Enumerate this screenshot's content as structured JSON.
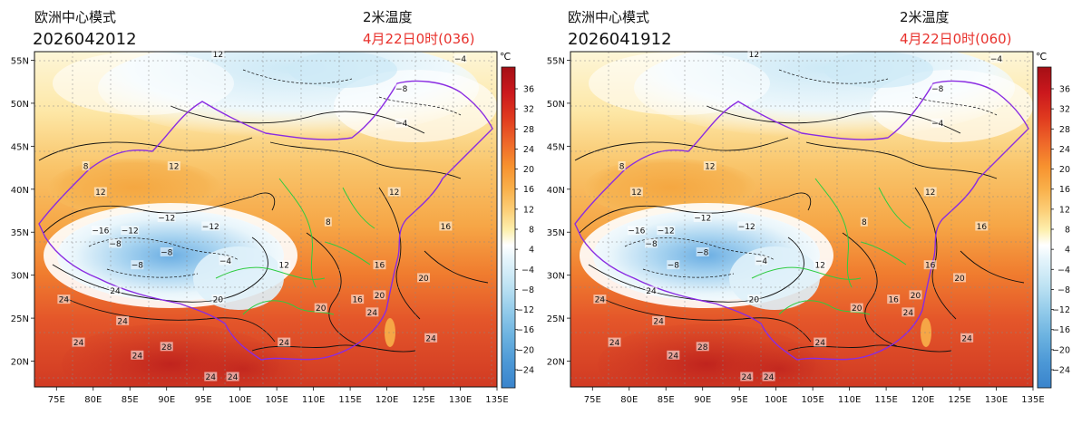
{
  "colors": {
    "title_black": "#111111",
    "title_red": "#e8312c",
    "china_border": "#8a2be2",
    "province_border": "#2ecc40",
    "contour": "#111111",
    "grid": "#888888"
  },
  "icons": {
    "colorbar_unit": "degree-celsius-glyph"
  },
  "panels": [
    {
      "model_name": "欧洲中心模式",
      "run_time": "2026042012",
      "variable": "2米温度",
      "valid_time": "4月22日0时(036)"
    },
    {
      "model_name": "欧洲中心模式",
      "run_time": "2026041912",
      "variable": "2米温度",
      "valid_time": "4月22日0时(060)"
    }
  ],
  "axes": {
    "lon_labels": [
      "75E",
      "80E",
      "85E",
      "90E",
      "95E",
      "100E",
      "105E",
      "110E",
      "115E",
      "120E",
      "125E",
      "130E",
      "135E"
    ],
    "lat_labels": [
      "20N",
      "25N",
      "30N",
      "35N",
      "40N",
      "45N",
      "50N",
      "55N"
    ]
  },
  "colorbar": {
    "unit": "℃",
    "ticks": [
      "36",
      "32",
      "28",
      "24",
      "20",
      "16",
      "12",
      "8",
      "4",
      "−4",
      "−8",
      "−12",
      "−16",
      "−20",
      "−24"
    ]
  },
  "contour_labels": {
    "panel0": [
      {
        "text": "24",
        "lon": 78,
        "lat": 22.0
      },
      {
        "text": "24",
        "lon": 84,
        "lat": 24.5
      },
      {
        "text": "28",
        "lon": 90,
        "lat": 21.5
      },
      {
        "text": "24",
        "lon": 86,
        "lat": 20.5
      },
      {
        "text": "24",
        "lon": 76,
        "lat": 27.0
      },
      {
        "text": "24",
        "lon": 83,
        "lat": 28.0
      },
      {
        "text": "24",
        "lon": 96,
        "lat": 18.0
      },
      {
        "text": "24",
        "lon": 99,
        "lat": 18.0
      },
      {
        "text": "24",
        "lon": 106,
        "lat": 22.0
      },
      {
        "text": "24",
        "lon": 118,
        "lat": 25.5
      },
      {
        "text": "24",
        "lon": 126,
        "lat": 22.5
      },
      {
        "text": "20",
        "lon": 97,
        "lat": 27.0
      },
      {
        "text": "20",
        "lon": 119,
        "lat": 27.5
      },
      {
        "text": "20",
        "lon": 111,
        "lat": 26.0
      },
      {
        "text": "20",
        "lon": 125,
        "lat": 29.5
      },
      {
        "text": "16",
        "lon": 116,
        "lat": 27.0
      },
      {
        "text": "16",
        "lon": 119,
        "lat": 31.0
      },
      {
        "text": "16",
        "lon": 128,
        "lat": 35.5
      },
      {
        "text": "12",
        "lon": 106,
        "lat": 31.0
      },
      {
        "text": "12",
        "lon": 121,
        "lat": 39.5
      },
      {
        "text": "12",
        "lon": 81,
        "lat": 39.5
      },
      {
        "text": "12",
        "lon": 91,
        "lat": 42.5
      },
      {
        "text": "8",
        "lon": 79,
        "lat": 42.5
      },
      {
        "text": "8",
        "lon": 112,
        "lat": 36.0
      },
      {
        "text": "−12",
        "lon": 90,
        "lat": 36.5
      },
      {
        "text": "−12",
        "lon": 85,
        "lat": 35.0
      },
      {
        "text": "−12",
        "lon": 96,
        "lat": 35.5
      },
      {
        "text": "−8",
        "lon": 83,
        "lat": 33.5
      },
      {
        "text": "−8",
        "lon": 90,
        "lat": 32.5
      },
      {
        "text": "−8",
        "lon": 86,
        "lat": 31.0
      },
      {
        "text": "−16",
        "lon": 81,
        "lat": 35.0
      },
      {
        "text": "−4",
        "lon": 98,
        "lat": 31.5
      },
      {
        "text": "−4",
        "lon": 122,
        "lat": 47.5
      },
      {
        "text": "−8",
        "lon": 122,
        "lat": 51.5
      },
      {
        "text": "12",
        "lon": 97,
        "lat": 55.5
      },
      {
        "text": "−4",
        "lon": 130,
        "lat": 55.0
      }
    ],
    "panel1": [
      {
        "text": "24",
        "lon": 78,
        "lat": 22.0
      },
      {
        "text": "24",
        "lon": 84,
        "lat": 24.5
      },
      {
        "text": "28",
        "lon": 90,
        "lat": 21.5
      },
      {
        "text": "24",
        "lon": 86,
        "lat": 20.5
      },
      {
        "text": "24",
        "lon": 76,
        "lat": 27.0
      },
      {
        "text": "24",
        "lon": 83,
        "lat": 28.0
      },
      {
        "text": "24",
        "lon": 96,
        "lat": 18.0
      },
      {
        "text": "24",
        "lon": 99,
        "lat": 18.0
      },
      {
        "text": "24",
        "lon": 106,
        "lat": 22.0
      },
      {
        "text": "24",
        "lon": 118,
        "lat": 25.5
      },
      {
        "text": "24",
        "lon": 126,
        "lat": 22.5
      },
      {
        "text": "20",
        "lon": 97,
        "lat": 27.0
      },
      {
        "text": "20",
        "lon": 119,
        "lat": 27.5
      },
      {
        "text": "20",
        "lon": 111,
        "lat": 26.0
      },
      {
        "text": "20",
        "lon": 125,
        "lat": 29.5
      },
      {
        "text": "16",
        "lon": 116,
        "lat": 27.0
      },
      {
        "text": "16",
        "lon": 121,
        "lat": 31.0
      },
      {
        "text": "16",
        "lon": 128,
        "lat": 35.5
      },
      {
        "text": "12",
        "lon": 106,
        "lat": 31.0
      },
      {
        "text": "12",
        "lon": 121,
        "lat": 39.5
      },
      {
        "text": "12",
        "lon": 81,
        "lat": 39.5
      },
      {
        "text": "12",
        "lon": 91,
        "lat": 42.5
      },
      {
        "text": "8",
        "lon": 79,
        "lat": 42.5
      },
      {
        "text": "8",
        "lon": 112,
        "lat": 36.0
      },
      {
        "text": "−12",
        "lon": 90,
        "lat": 36.5
      },
      {
        "text": "−12",
        "lon": 85,
        "lat": 35.0
      },
      {
        "text": "−12",
        "lon": 96,
        "lat": 35.5
      },
      {
        "text": "−8",
        "lon": 83,
        "lat": 33.5
      },
      {
        "text": "−8",
        "lon": 90,
        "lat": 32.5
      },
      {
        "text": "−8",
        "lon": 86,
        "lat": 31.0
      },
      {
        "text": "−16",
        "lon": 81,
        "lat": 35.0
      },
      {
        "text": "−4",
        "lon": 98,
        "lat": 31.5
      },
      {
        "text": "−4",
        "lon": 122,
        "lat": 47.5
      },
      {
        "text": "−8",
        "lon": 122,
        "lat": 51.5
      },
      {
        "text": "12",
        "lon": 97,
        "lat": 55.5
      },
      {
        "text": "−4",
        "lon": 130,
        "lat": 55.0
      }
    ]
  }
}
